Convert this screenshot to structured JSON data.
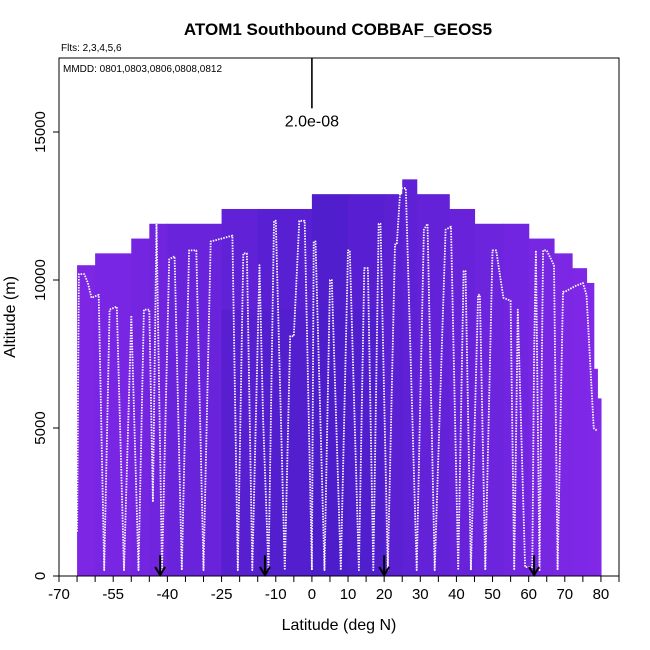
{
  "chart_data": {
    "type": "heatmap",
    "title": "ATOM1 Southbound COBBAF_GEOS5",
    "flights_label": "Flts: 2,3,4,5,6",
    "dates_label": "MMDD: 0801,0803,0806,0808,0812",
    "xlabel": "Latitude (deg N)",
    "ylabel": "Altitude (m)",
    "xlim": [
      -70,
      85
    ],
    "ylim": [
      0,
      17500
    ],
    "x_ticks": [
      -70,
      -55,
      -40,
      -25,
      -10,
      0,
      10,
      20,
      30,
      40,
      50,
      60,
      70,
      80
    ],
    "x_tick_labels": [
      "-70",
      "-55",
      "-40",
      "-25",
      "-10",
      "0",
      "10",
      "20",
      "30",
      "40",
      "50",
      "60",
      "70",
      "80"
    ],
    "y_ticks": [
      0,
      5000,
      10000,
      15000
    ],
    "y_tick_labels": [
      "0",
      "5000",
      "10000",
      "15000"
    ],
    "scale_bar": {
      "label": "2.0e-08",
      "x": 0,
      "y_bottom": 15800,
      "y_top": 17500
    },
    "curtain_columns": [
      {
        "lat0": -65,
        "lat1": -60,
        "top": 10500
      },
      {
        "lat0": -60,
        "lat1": -50,
        "top": 10900
      },
      {
        "lat0": -50,
        "lat1": -45,
        "top": 11400
      },
      {
        "lat0": -45,
        "lat1": -40,
        "top": 11900
      },
      {
        "lat0": -40,
        "lat1": -25,
        "top": 11900
      },
      {
        "lat0": -25,
        "lat1": -15,
        "top": 12400
      },
      {
        "lat0": -15,
        "lat1": 0,
        "top": 12400
      },
      {
        "lat0": 0,
        "lat1": 10,
        "top": 12900
      },
      {
        "lat0": 10,
        "lat1": 20,
        "top": 12900
      },
      {
        "lat0": 20,
        "lat1": 25,
        "top": 12900
      },
      {
        "lat0": 25,
        "lat1": 29,
        "top": 13400
      },
      {
        "lat0": 29,
        "lat1": 38,
        "top": 12900
      },
      {
        "lat0": 38,
        "lat1": 45,
        "top": 12400
      },
      {
        "lat0": 45,
        "lat1": 53,
        "top": 11900
      },
      {
        "lat0": 53,
        "lat1": 60,
        "top": 11900
      },
      {
        "lat0": 60,
        "lat1": 67,
        "top": 11400
      },
      {
        "lat0": 67,
        "lat1": 72,
        "top": 10900
      },
      {
        "lat0": 72,
        "lat1": 76,
        "top": 10400
      },
      {
        "lat0": 76,
        "lat1": 78,
        "top": 9900
      },
      {
        "lat0": 78,
        "lat1": 79,
        "top": 7000
      },
      {
        "lat0": 79,
        "lat1": 80,
        "top": 6000
      }
    ],
    "flight_track": [
      [
        -65,
        1500
      ],
      [
        -64.5,
        10200
      ],
      [
        -63,
        10200
      ],
      [
        -62,
        9900
      ],
      [
        -61,
        9400
      ],
      [
        -59,
        9500
      ],
      [
        -57.5,
        200
      ],
      [
        -56,
        9000
      ],
      [
        -54,
        9100
      ],
      [
        -52,
        200
      ],
      [
        -50,
        8800
      ],
      [
        -48,
        200
      ],
      [
        -46.5,
        9000
      ],
      [
        -45,
        9000
      ],
      [
        -44,
        2500
      ],
      [
        -43,
        11900
      ],
      [
        -41.5,
        200
      ],
      [
        -39.5,
        10700
      ],
      [
        -38,
        10800
      ],
      [
        -36,
        200
      ],
      [
        -34,
        11000
      ],
      [
        -32,
        11000
      ],
      [
        -30,
        200
      ],
      [
        -28,
        11300
      ],
      [
        -25,
        11400
      ],
      [
        -22,
        11500
      ],
      [
        -20.5,
        200
      ],
      [
        -19,
        10900
      ],
      [
        -18,
        10900
      ],
      [
        -16.5,
        200
      ],
      [
        -14.5,
        10500
      ],
      [
        -13.5,
        5300
      ],
      [
        -12,
        200
      ],
      [
        -10.5,
        12000
      ],
      [
        -10,
        12000
      ],
      [
        -7.5,
        200
      ],
      [
        -6,
        8100
      ],
      [
        -5,
        8100
      ],
      [
        -3.5,
        12000
      ],
      [
        -2,
        12000
      ],
      [
        0,
        200
      ],
      [
        0.5,
        11300
      ],
      [
        1,
        11300
      ],
      [
        3.5,
        200
      ],
      [
        5,
        10000
      ],
      [
        5.5,
        10000
      ],
      [
        8,
        200
      ],
      [
        10,
        11000
      ],
      [
        10.5,
        11000
      ],
      [
        13,
        200
      ],
      [
        14.5,
        10400
      ],
      [
        15.5,
        10400
      ],
      [
        17,
        200
      ],
      [
        18.5,
        11900
      ],
      [
        19,
        11900
      ],
      [
        21,
        200
      ],
      [
        23,
        11200
      ],
      [
        23.5,
        11200
      ],
      [
        24.5,
        13100
      ],
      [
        26,
        13100
      ],
      [
        29,
        200
      ],
      [
        31,
        11700
      ],
      [
        32,
        11900
      ],
      [
        34,
        200
      ],
      [
        37,
        11700
      ],
      [
        38.5,
        11800
      ],
      [
        40.5,
        200
      ],
      [
        42,
        10300
      ],
      [
        42.5,
        10300
      ],
      [
        44,
        200
      ],
      [
        46,
        9500
      ],
      [
        46.5,
        9500
      ],
      [
        48,
        200
      ],
      [
        50,
        11000
      ],
      [
        51,
        11000
      ],
      [
        53,
        9400
      ],
      [
        55,
        9300
      ],
      [
        56,
        200
      ],
      [
        57,
        9000
      ],
      [
        59,
        300
      ],
      [
        61,
        300
      ],
      [
        61.5,
        7500
      ],
      [
        62,
        11000
      ],
      [
        63,
        200
      ],
      [
        64,
        11000
      ],
      [
        65,
        11000
      ],
      [
        67,
        10500
      ],
      [
        68,
        200
      ],
      [
        69.5,
        9600
      ],
      [
        70,
        9600
      ],
      [
        73,
        9800
      ],
      [
        75,
        9900
      ],
      [
        76,
        9500
      ],
      [
        78,
        5000
      ],
      [
        79,
        4900
      ]
    ],
    "arrows_lat": [
      -42,
      -13,
      20,
      61.5
    ]
  }
}
